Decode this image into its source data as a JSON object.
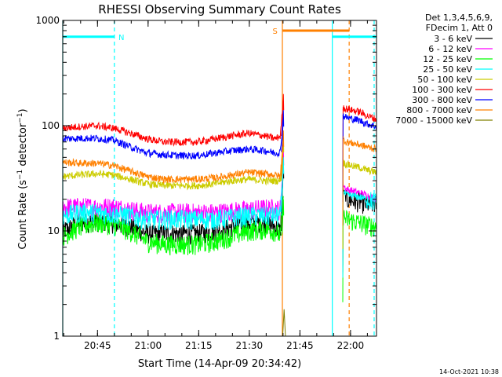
{
  "chart_data": {
    "type": "line",
    "title": "RHESSI Observing Summary Count Rates",
    "xlabel": "Start Time (14-Apr-09 20:34:42)",
    "ylabel": "Count Rate (s⁻¹ detector⁻¹)",
    "ylabel_main": "Count Rate (s",
    "ylabel_sup1": "−1",
    "ylabel_mid": " detector",
    "ylabel_sup2": "−1",
    "ylabel_end": ")",
    "yscale": "log",
    "ylim": [
      1,
      1000
    ],
    "xlim_minutes": [
      0,
      93
    ],
    "x_ticks": [
      {
        "m": 10.3,
        "label": "20:45"
      },
      {
        "m": 25.3,
        "label": "21:00"
      },
      {
        "m": 40.3,
        "label": "21:15"
      },
      {
        "m": 55.3,
        "label": "21:30"
      },
      {
        "m": 70.3,
        "label": "21:45"
      },
      {
        "m": 85.3,
        "label": "22:00"
      }
    ],
    "y_ticks": [
      {
        "v": 1,
        "label": "1"
      },
      {
        "v": 10,
        "label": "10"
      },
      {
        "v": 100,
        "label": "100"
      },
      {
        "v": 1000,
        "label": "1000"
      }
    ],
    "legend_header": [
      "Det 1,3,4,5,6,9,",
      "FDecim 1, Att 0"
    ],
    "series": [
      {
        "name": "3 - 6 keV",
        "color": "#000000",
        "x": [
          0,
          5,
          10,
          15,
          20,
          25,
          30,
          35,
          40,
          45,
          50,
          55,
          60,
          63,
          64.5,
          65.5,
          83,
          84,
          88,
          90,
          93
        ],
        "y": [
          10,
          12,
          12.5,
          12,
          11,
          9.5,
          9.5,
          9.5,
          9.5,
          10,
          11,
          12,
          12,
          11,
          10,
          45,
          25,
          20,
          19,
          18,
          18
        ]
      },
      {
        "name": "6 - 12 keV",
        "color": "#ff00ff",
        "x": [
          0,
          5,
          10,
          15,
          20,
          25,
          30,
          35,
          40,
          45,
          50,
          55,
          60,
          63,
          64.5,
          65.5,
          83,
          84,
          88,
          90,
          93
        ],
        "y": [
          17,
          17,
          17,
          17,
          16,
          15,
          15,
          15,
          15,
          15,
          15.5,
          16,
          16.5,
          16.5,
          16,
          60,
          28,
          25,
          23,
          22,
          20
        ]
      },
      {
        "name": "12 - 25 keV",
        "color": "#00ff00",
        "x": [
          0,
          5,
          10,
          15,
          20,
          25,
          30,
          35,
          40,
          45,
          50,
          55,
          60,
          63,
          64.5,
          65.5,
          83,
          84,
          88,
          90,
          93
        ],
        "y": [
          9,
          11,
          12,
          11.5,
          10,
          8,
          7.5,
          7.5,
          7.5,
          8,
          9,
          10,
          10.5,
          10,
          9,
          20,
          14,
          13,
          12,
          11.5,
          11
        ]
      },
      {
        "name": "25 - 50 keV",
        "color": "#00ffff",
        "x": [
          0,
          5,
          10,
          15,
          20,
          25,
          30,
          35,
          40,
          45,
          50,
          55,
          60,
          63,
          64.5,
          65.5,
          83,
          84,
          88,
          90,
          93
        ],
        "y": [
          14,
          15,
          15,
          14.5,
          14,
          13,
          13,
          13,
          13,
          13,
          13.5,
          14,
          14,
          14,
          14,
          50,
          24,
          22,
          21,
          20,
          19
        ]
      },
      {
        "name": "50 - 100 keV",
        "color": "#cccc00",
        "x": [
          0,
          5,
          10,
          15,
          20,
          25,
          30,
          35,
          40,
          45,
          50,
          55,
          60,
          63,
          64.5,
          65.5,
          83,
          84,
          88,
          90,
          93
        ],
        "y": [
          33,
          34,
          35,
          34,
          31,
          28,
          27,
          27,
          27,
          28,
          30,
          31,
          30,
          30,
          30,
          80,
          45,
          43,
          40,
          38,
          36
        ]
      },
      {
        "name": "100 - 300 keV",
        "color": "#ff0000",
        "x": [
          0,
          5,
          10,
          15,
          20,
          25,
          30,
          35,
          40,
          45,
          50,
          55,
          60,
          63,
          64.5,
          65.5,
          83,
          84,
          88,
          90,
          93
        ],
        "y": [
          95,
          98,
          100,
          95,
          85,
          75,
          70,
          70,
          70,
          75,
          80,
          85,
          80,
          75,
          80,
          200,
          150,
          145,
          135,
          125,
          115
        ]
      },
      {
        "name": "300 - 800 keV",
        "color": "#0000ff",
        "x": [
          0,
          5,
          10,
          15,
          20,
          25,
          30,
          35,
          40,
          45,
          50,
          55,
          60,
          63,
          64.5,
          65.5,
          83,
          84,
          88,
          90,
          93
        ],
        "y": [
          75,
          76,
          76,
          73,
          63,
          55,
          53,
          52,
          52,
          55,
          58,
          60,
          58,
          55,
          56,
          140,
          125,
          120,
          112,
          105,
          98
        ]
      },
      {
        "name": "800 - 7000 keV",
        "color": "#ff8000",
        "x": [
          0,
          5,
          10,
          15,
          20,
          25,
          30,
          35,
          40,
          45,
          50,
          55,
          60,
          63,
          64.5,
          65.5,
          83,
          84,
          88,
          90,
          93
        ],
        "y": [
          45,
          44,
          44,
          42,
          37,
          33,
          31,
          31,
          31,
          32,
          34,
          36,
          35,
          34,
          33,
          90,
          75,
          70,
          66,
          63,
          60
        ]
      },
      {
        "name": "7000 - 15000 keV",
        "color": "#808000",
        "x": [
          65.2,
          65.6,
          66
        ],
        "y": [
          1,
          1.8,
          1
        ]
      }
    ],
    "flags": [
      {
        "label": "N",
        "color": "#00ffff",
        "y": 700,
        "segments": [
          [
            0,
            15.3
          ],
          [
            79.9,
            93
          ]
        ],
        "labels_at": [
          16.5
        ]
      },
      {
        "label": "S",
        "color": "#ff8000",
        "y": 800,
        "segments": [
          [
            65.1,
            84.9
          ]
        ],
        "labels_at": [
          62.2
        ]
      }
    ],
    "vlines": [
      {
        "m": 0,
        "color": "#00ffff",
        "style": "solid"
      },
      {
        "m": 15.3,
        "color": "#00ffff",
        "style": "dashed"
      },
      {
        "m": 79.9,
        "color": "#00ffff",
        "style": "solid"
      },
      {
        "m": 92.3,
        "color": "#00ffff",
        "style": "dashed"
      },
      {
        "m": 65.1,
        "color": "#ff8000",
        "style": "solid"
      },
      {
        "m": 84.9,
        "color": "#ff8000",
        "style": "dashed"
      }
    ]
  },
  "footer": {
    "date": "14-Oct-2021 10:38"
  }
}
